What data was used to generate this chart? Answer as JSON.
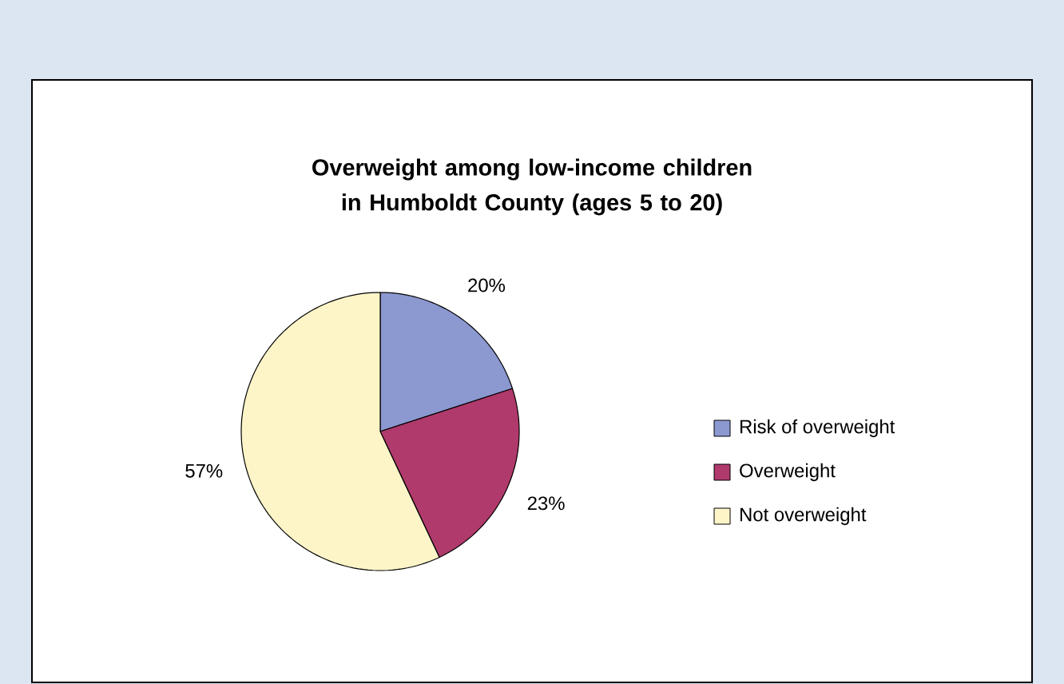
{
  "chart_data": {
    "type": "pie",
    "title": "Overweight among low-income children in Humboldt County (ages 5 to 20)",
    "categories": [
      "Risk of overweight",
      "Overweight",
      "Not overweight"
    ],
    "values": [
      20,
      23,
      57
    ],
    "colors": [
      "#8c98d0",
      "#b03a6c",
      "#fdf5c8"
    ],
    "value_labels": [
      "20%",
      "23%",
      "57%"
    ],
    "legend": "right"
  }
}
